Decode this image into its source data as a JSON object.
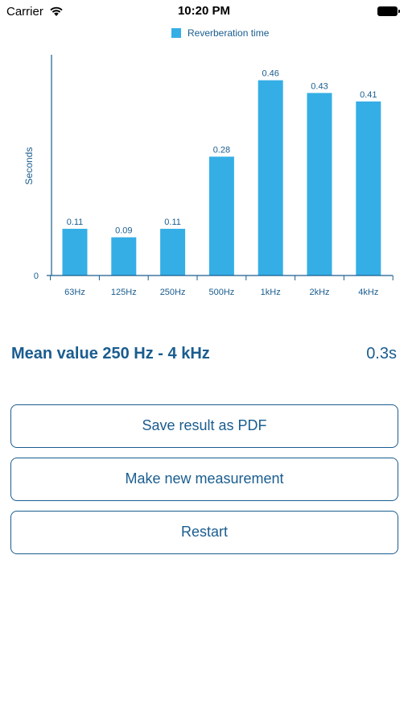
{
  "status_bar": {
    "carrier": "Carrier",
    "time": "10:20 PM"
  },
  "chart_data": {
    "type": "bar",
    "categories": [
      "63Hz",
      "125Hz",
      "250Hz",
      "500Hz",
      "1kHz",
      "2kHz",
      "4kHz"
    ],
    "values": [
      0.11,
      0.09,
      0.11,
      0.28,
      0.46,
      0.43,
      0.41
    ],
    "value_labels": [
      "0.11",
      "0.09",
      "0.11",
      "0.28",
      "0.46",
      "0.43",
      "0.41"
    ],
    "series": [
      {
        "name": "Reverberation time",
        "values": [
          0.11,
          0.09,
          0.11,
          0.28,
          0.46,
          0.43,
          0.41
        ]
      }
    ],
    "ylabel": "Seconds",
    "y_tick_labels": [
      "0"
    ],
    "ylim": [
      0,
      0.52
    ],
    "legend": "top-center",
    "grid": false,
    "bar_color": "#35aee6"
  },
  "summary": {
    "mean_label": "Mean value 250 Hz - 4 kHz",
    "mean_value": "0.3s"
  },
  "buttons": {
    "save_pdf": "Save result as PDF",
    "new_measurement": "Make new measurement",
    "restart": "Restart"
  },
  "colors": {
    "accent": "#1a5d8f",
    "bar": "#35aee6"
  }
}
